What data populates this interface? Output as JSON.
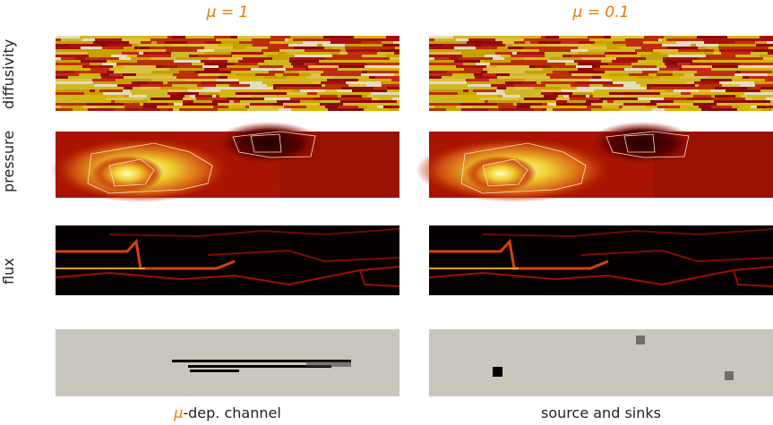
{
  "columns": [
    "μ = 1",
    "μ = 0.1"
  ],
  "rows": [
    "diffusivity",
    "pressure",
    "flux"
  ],
  "captions": [
    {
      "symbol": "μ",
      "text": "-dep. channel"
    },
    {
      "text": "source and sinks"
    }
  ]
}
